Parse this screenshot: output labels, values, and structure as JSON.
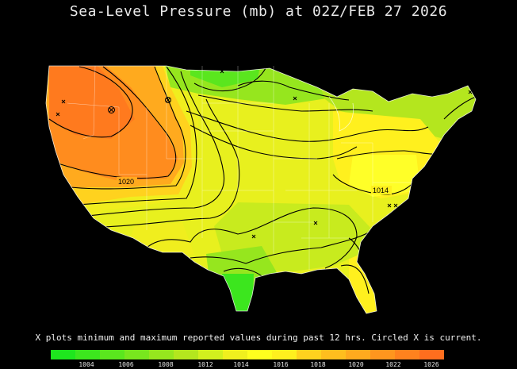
{
  "title": "Sea-Level Pressure (mb) at 02Z/FEB 27 2026",
  "caption": "X plots minimum and maximum reported values during past 12 hrs. Circled X is current.",
  "contour_labels": [
    "1020",
    "1014"
  ],
  "legend": {
    "colors": [
      "#1ee61e",
      "#3ce61e",
      "#5ae61e",
      "#78e61e",
      "#96e61e",
      "#b4e61e",
      "#d2f01e",
      "#f0f01e",
      "#ffff1e",
      "#fff01e",
      "#ffd21e",
      "#ffbe1e",
      "#ffaa1e",
      "#ff961e",
      "#ff821e",
      "#ff6e1e"
    ],
    "ticks": [
      "1004",
      "1006",
      "1008",
      "1012",
      "1014",
      "1016",
      "1018",
      "1020",
      "1022",
      "1026"
    ]
  }
}
